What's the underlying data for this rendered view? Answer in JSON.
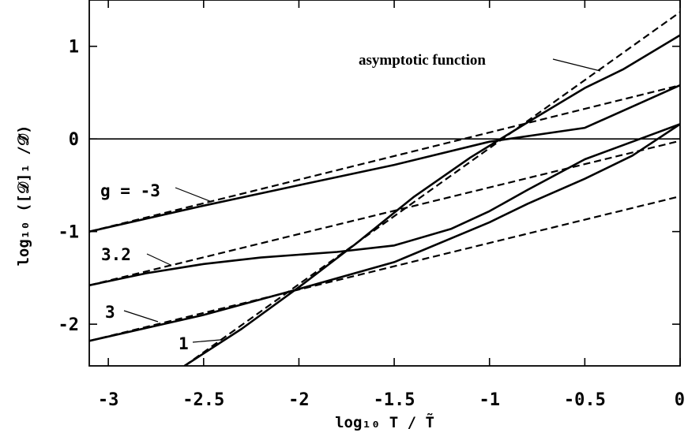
{
  "chart_data": {
    "type": "line",
    "xlabel": "log₁₀ T / T̃",
    "ylabel": "log₁₀ ([𝒟]₁ /𝒟̃)",
    "xlim": [
      -3.1,
      0
    ],
    "ylim": [
      -2.45,
      1.5
    ],
    "grid": false,
    "xticks": [
      {
        "value": -3,
        "label": "-3"
      },
      {
        "value": -2.5,
        "label": "-2.5"
      },
      {
        "value": -2,
        "label": "-2"
      },
      {
        "value": -1.5,
        "label": "-1.5"
      },
      {
        "value": -1,
        "label": "-1"
      },
      {
        "value": -0.5,
        "label": "-0.5"
      },
      {
        "value": 0,
        "label": "0"
      }
    ],
    "yticks": [
      {
        "value": 1,
        "label": "1"
      },
      {
        "value": 0,
        "label": "0"
      },
      {
        "value": -1,
        "label": "-1"
      },
      {
        "value": -2,
        "label": "-2"
      }
    ],
    "reference_lines": [
      {
        "y": 0
      }
    ],
    "series": [
      {
        "name": "g = -3",
        "style": "solid",
        "x": [
          -3.1,
          -2.5,
          -2,
          -1.5,
          -1,
          -0.5,
          0
        ],
        "y": [
          -1.0,
          -0.72,
          -0.5,
          -0.28,
          -0.03,
          0.12,
          0.58
        ]
      },
      {
        "name": "3.2",
        "style": "solid",
        "x": [
          -3.1,
          -2.8,
          -2.5,
          -2.2,
          -2.0,
          -1.8,
          -1.5,
          -1.2,
          -1.0,
          -0.8,
          -0.5,
          -0.25,
          0
        ],
        "y": [
          -1.58,
          -1.45,
          -1.35,
          -1.28,
          -1.25,
          -1.22,
          -1.15,
          -0.97,
          -0.78,
          -0.55,
          -0.22,
          -0.03,
          0.16
        ]
      },
      {
        "name": "3",
        "style": "solid",
        "x": [
          -3.1,
          -2.5,
          -2.0,
          -1.5,
          -1.0,
          -0.8,
          -0.5,
          -0.25,
          0
        ],
        "y": [
          -2.18,
          -1.9,
          -1.62,
          -1.33,
          -0.9,
          -0.7,
          -0.43,
          -0.18,
          0.16
        ]
      },
      {
        "name": "1",
        "style": "solid",
        "x": [
          -2.6,
          -2.3,
          -2.0,
          -1.7,
          -1.4,
          -1.1,
          -0.8,
          -0.5,
          -0.3,
          0
        ],
        "y": [
          -2.45,
          -2.05,
          -1.6,
          -1.13,
          -0.63,
          -0.2,
          0.18,
          0.55,
          0.75,
          1.12
        ]
      },
      {
        "name": "asymptotic function",
        "style": "dashed",
        "x": [
          -3.1,
          0
        ],
        "y": [
          -1.0,
          0.58
        ]
      },
      {
        "name": "asymptotic function",
        "style": "dashed",
        "x": [
          -3.1,
          0
        ],
        "y": [
          -1.58,
          -0.02
        ]
      },
      {
        "name": "asymptotic function",
        "style": "dashed",
        "x": [
          -3.1,
          0
        ],
        "y": [
          -2.18,
          -0.62
        ]
      },
      {
        "name": "asymptotic function",
        "style": "dashed",
        "x": [
          -2.6,
          0
        ],
        "y": [
          -2.45,
          1.37
        ]
      }
    ],
    "annotations": [
      {
        "text": "asymptotic function"
      },
      {
        "text": "g = -3"
      },
      {
        "text": "3.2"
      },
      {
        "text": "3"
      },
      {
        "text": "1"
      }
    ]
  }
}
